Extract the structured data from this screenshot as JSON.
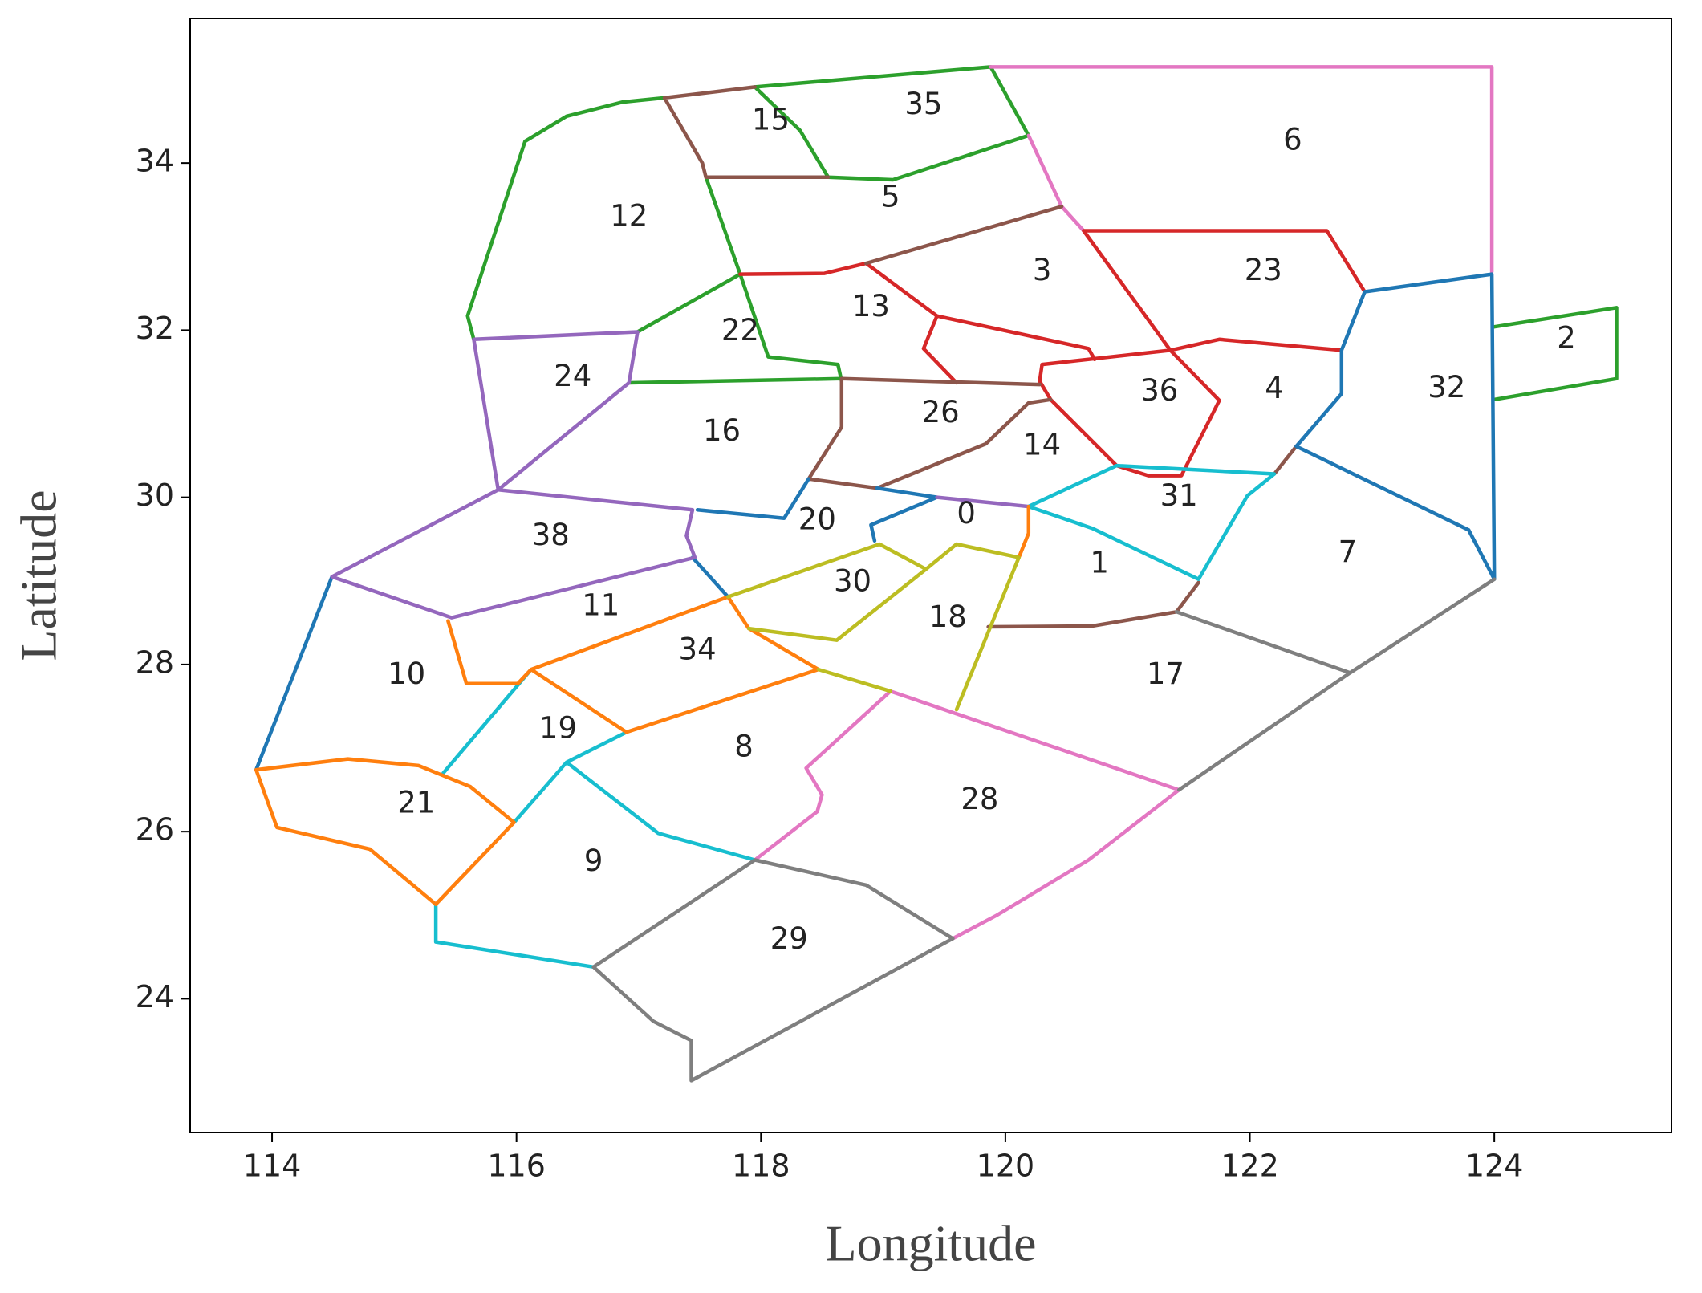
{
  "chart_data": {
    "type": "line",
    "xlabel": "Longitude",
    "ylabel": "Latitude",
    "xlim": [
      113.33,
      125.45
    ],
    "ylim": [
      22.4,
      35.73
    ],
    "xticks": [
      114,
      116,
      118,
      120,
      122,
      124
    ],
    "yticks": [
      24,
      26,
      28,
      30,
      32,
      34
    ],
    "series": [
      {
        "color": "#2ca02c",
        "x": [
          117.95,
          119.88,
          120.19,
          119.08,
          118.55,
          118.32,
          117.95,
          null,
          117.21,
          116.87,
          116.41,
          116.07,
          115.6,
          115.65,
          null,
          117.55,
          117.83,
          118.06,
          118.63,
          118.66,
          null,
          116.99,
          117.83,
          null,
          116.92,
          118.66,
          null,
          124.0,
          125.0,
          125.0,
          124.0
        ],
        "y": [
          34.91,
          35.15,
          34.33,
          33.8,
          33.83,
          34.39,
          34.91,
          null,
          34.78,
          34.73,
          34.56,
          34.26,
          32.17,
          31.89,
          null,
          33.83,
          32.67,
          31.68,
          31.59,
          31.39,
          null,
          31.98,
          32.67,
          null,
          31.37,
          31.42,
          null,
          32.04,
          32.27,
          31.42,
          31.17
        ]
      },
      {
        "color": "#e377c2",
        "x": [
          119.88,
          123.98,
          123.98,
          null,
          120.19,
          120.46,
          120.64,
          null,
          117.95,
          118.46,
          118.5,
          118.37,
          119.06,
          121.42,
          120.68,
          119.93,
          119.57
        ],
        "y": [
          35.15,
          35.15,
          32.7,
          null,
          34.33,
          33.48,
          33.19,
          null,
          25.66,
          26.24,
          26.44,
          26.76,
          27.68,
          26.5,
          25.66,
          25.0,
          24.72
        ]
      },
      {
        "color": "#d62728",
        "x": [
          120.64,
          122.63,
          122.94,
          null,
          117.83,
          118.52,
          118.86,
          119.44,
          120.68,
          120.73,
          null,
          119.44,
          119.33,
          119.6,
          null,
          122.75,
          121.75,
          121.35,
          120.3,
          120.28,
          120.37,
          120.91,
          121.17,
          121.44,
          121.75,
          121.35,
          120.64
        ],
        "y": [
          33.19,
          33.19,
          32.46,
          null,
          32.67,
          32.68,
          32.8,
          32.17,
          31.78,
          31.65,
          null,
          32.17,
          31.78,
          31.37,
          null,
          31.76,
          31.89,
          31.76,
          31.59,
          31.39,
          31.17,
          30.38,
          30.26,
          30.26,
          31.16,
          31.76,
          33.19
        ]
      },
      {
        "color": "#8c564b",
        "x": [
          117.95,
          117.21,
          117.52,
          117.55,
          118.55,
          null,
          118.86,
          120.46,
          null,
          118.66,
          120.28,
          null,
          118.66,
          118.66,
          118.39,
          118.95,
          119.84,
          120.19,
          120.37,
          null,
          119.86,
          120.71,
          121.4,
          121.58,
          null,
          122.2,
          122.38
        ],
        "y": [
          34.91,
          34.78,
          34.0,
          33.83,
          33.83,
          null,
          32.8,
          33.48,
          null,
          31.42,
          31.35,
          null,
          31.39,
          30.84,
          30.22,
          30.11,
          30.64,
          31.13,
          31.17,
          null,
          28.45,
          28.46,
          28.63,
          28.98,
          null,
          30.28,
          30.61
        ]
      },
      {
        "color": "#1f77b4",
        "x": [
          122.94,
          123.98,
          124.0,
          123.79,
          122.38,
          122.75,
          122.75,
          122.94,
          null,
          117.48,
          118.19,
          118.39,
          null,
          118.95,
          119.44,
          118.9,
          118.93,
          null,
          117.44,
          117.73,
          null,
          114.49,
          113.87
        ],
        "y": [
          32.46,
          32.67,
          29.02,
          29.61,
          30.61,
          31.24,
          31.76,
          32.46,
          null,
          29.85,
          29.75,
          30.22,
          null,
          30.11,
          30.0,
          29.67,
          29.48,
          null,
          29.28,
          28.81,
          null,
          29.05,
          26.74
        ]
      },
      {
        "color": "#9467bd",
        "x": [
          115.65,
          116.99,
          116.92,
          115.85,
          115.65,
          null,
          115.85,
          117.44,
          117.39,
          117.46,
          115.47,
          114.49,
          115.85,
          null,
          119.44,
          120.19
        ],
        "y": [
          31.89,
          31.98,
          31.37,
          30.09,
          31.89,
          null,
          30.09,
          29.85,
          29.54,
          29.28,
          28.56,
          29.05,
          30.09,
          null,
          30.0,
          29.89
        ]
      },
      {
        "color": "#17becf",
        "x": [
          120.19,
          120.91,
          122.2,
          121.98,
          121.58,
          120.71,
          120.19,
          null,
          116.12,
          115.4,
          null,
          115.98,
          116.41,
          116.9,
          null,
          116.41,
          117.16,
          117.95,
          null,
          115.34,
          115.34,
          116.63
        ],
        "y": [
          29.89,
          30.38,
          30.28,
          30.02,
          29.02,
          29.63,
          29.89,
          null,
          27.94,
          26.7,
          null,
          26.11,
          26.83,
          27.19,
          null,
          26.83,
          25.98,
          25.66,
          null,
          25.13,
          24.68,
          24.38
        ]
      },
      {
        "color": "#ff7f0e",
        "x": [
          113.87,
          114.62,
          115.2,
          115.62,
          115.98,
          115.34,
          114.8,
          114.04,
          113.87,
          null,
          115.44,
          115.59,
          116.01,
          116.12,
          117.73,
          117.9,
          118.47,
          116.9,
          116.12,
          null,
          120.19,
          120.19,
          120.11
        ],
        "y": [
          26.74,
          26.87,
          26.79,
          26.54,
          26.11,
          25.13,
          25.79,
          26.05,
          26.74,
          null,
          28.52,
          27.77,
          27.77,
          27.94,
          28.81,
          28.43,
          27.94,
          27.19,
          27.94,
          null,
          29.89,
          29.57,
          29.28
        ]
      },
      {
        "color": "#bcbd22",
        "x": [
          117.73,
          118.97,
          119.35,
          119.6,
          120.11,
          119.6,
          null,
          117.9,
          118.62,
          119.35,
          null,
          118.47,
          119.06
        ],
        "y": [
          28.81,
          29.44,
          29.14,
          29.44,
          29.28,
          27.46,
          null,
          28.43,
          28.29,
          29.14,
          null,
          27.94,
          27.68
        ]
      },
      {
        "color": "#7f7f7f",
        "x": [
          116.63,
          117.12,
          117.43,
          117.43,
          119.57,
          null,
          121.42,
          122.82,
          124.0,
          null,
          121.4,
          122.82,
          null,
          117.95,
          118.86,
          119.57,
          null,
          116.63,
          117.95
        ],
        "y": [
          24.38,
          23.73,
          23.5,
          23.02,
          24.72,
          null,
          26.5,
          27.9,
          29.02,
          null,
          28.63,
          27.9,
          null,
          25.66,
          25.36,
          24.72,
          null,
          24.38,
          25.66
        ]
      }
    ],
    "regions": [
      {
        "label": "35",
        "x": 119.33,
        "y": 34.69
      },
      {
        "label": "15",
        "x": 118.08,
        "y": 34.5
      },
      {
        "label": "6",
        "x": 122.35,
        "y": 34.26
      },
      {
        "label": "5",
        "x": 119.06,
        "y": 33.58
      },
      {
        "label": "12",
        "x": 116.92,
        "y": 33.35
      },
      {
        "label": "3",
        "x": 120.3,
        "y": 32.7
      },
      {
        "label": "23",
        "x": 122.11,
        "y": 32.7
      },
      {
        "label": "13",
        "x": 118.9,
        "y": 32.27
      },
      {
        "label": "22",
        "x": 117.83,
        "y": 31.98
      },
      {
        "label": "2",
        "x": 124.59,
        "y": 31.89
      },
      {
        "label": "24",
        "x": 116.46,
        "y": 31.43
      },
      {
        "label": "32",
        "x": 123.61,
        "y": 31.3
      },
      {
        "label": "4",
        "x": 122.2,
        "y": 31.29
      },
      {
        "label": "36",
        "x": 121.26,
        "y": 31.26
      },
      {
        "label": "26",
        "x": 119.47,
        "y": 31.0
      },
      {
        "label": "16",
        "x": 117.68,
        "y": 30.78
      },
      {
        "label": "14",
        "x": 120.3,
        "y": 30.61
      },
      {
        "label": "31",
        "x": 121.42,
        "y": 30.0
      },
      {
        "label": "20",
        "x": 118.46,
        "y": 29.72
      },
      {
        "label": "0",
        "x": 119.68,
        "y": 29.79
      },
      {
        "label": "38",
        "x": 116.28,
        "y": 29.53
      },
      {
        "label": "7",
        "x": 122.8,
        "y": 29.33
      },
      {
        "label": "1",
        "x": 120.77,
        "y": 29.2
      },
      {
        "label": "30",
        "x": 118.75,
        "y": 28.98
      },
      {
        "label": "11",
        "x": 116.69,
        "y": 28.69
      },
      {
        "label": "18",
        "x": 119.53,
        "y": 28.55
      },
      {
        "label": "34",
        "x": 117.48,
        "y": 28.16
      },
      {
        "label": "10",
        "x": 115.1,
        "y": 27.87
      },
      {
        "label": "17",
        "x": 121.31,
        "y": 27.87
      },
      {
        "label": "19",
        "x": 116.34,
        "y": 27.22
      },
      {
        "label": "8",
        "x": 117.86,
        "y": 27.0
      },
      {
        "label": "28",
        "x": 119.79,
        "y": 26.37
      },
      {
        "label": "21",
        "x": 115.18,
        "y": 26.33
      },
      {
        "label": "9",
        "x": 116.63,
        "y": 25.63
      },
      {
        "label": "29",
        "x": 118.23,
        "y": 24.7
      }
    ]
  }
}
